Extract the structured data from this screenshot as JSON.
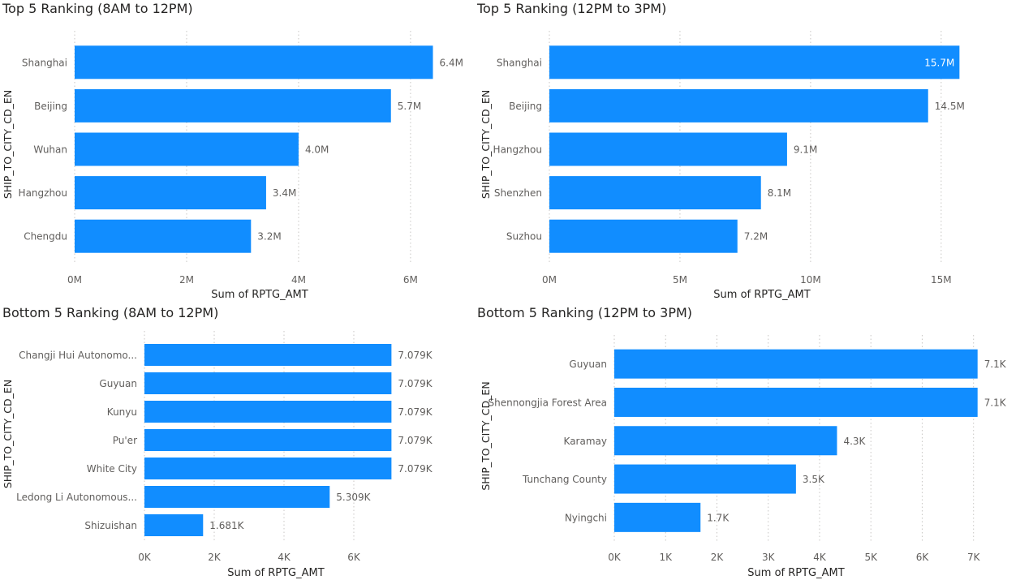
{
  "chart_data": [
    {
      "type": "bar",
      "title": "Top 5 Ranking (8AM to 12PM)",
      "xlabel": "Sum of RPTG_AMT",
      "ylabel": "SHIP_TO_CITY_CD_EN",
      "categories": [
        "Shanghai",
        "Beijing",
        "Wuhan",
        "Hangzhou",
        "Chengdu"
      ],
      "values": [
        6400000,
        5650000,
        4000000,
        3420000,
        3150000
      ],
      "data_labels": [
        "6.4M",
        "5.7M",
        "4.0M",
        "3.4M",
        "3.2M"
      ],
      "xticks": [
        0,
        2000000,
        4000000,
        6000000
      ],
      "xtick_labels": [
        "0M",
        "2M",
        "4M",
        "6M"
      ],
      "xlim": [
        0,
        6900000
      ],
      "color": "#118DFF",
      "grid": "vertical dotted"
    },
    {
      "type": "bar",
      "title": "Top 5 Ranking (12PM to 3PM)",
      "xlabel": "Sum of RPTG_AMT",
      "ylabel": "SHIP_TO_CITY_CD_EN",
      "categories": [
        "Shanghai",
        "Beijing",
        "Hangzhou",
        "Shenzhen",
        "Suzhou"
      ],
      "values": [
        15700000,
        14500000,
        9100000,
        8100000,
        7200000
      ],
      "data_labels": [
        "15.7M",
        "14.5M",
        "9.1M",
        "8.1M",
        "7.2M"
      ],
      "xticks": [
        0,
        5000000,
        10000000,
        15000000
      ],
      "xtick_labels": [
        "0M",
        "5M",
        "10M",
        "15M"
      ],
      "xlim": [
        0,
        16900000
      ],
      "color": "#118DFF",
      "grid": "vertical dotted"
    },
    {
      "type": "bar",
      "title": "Bottom 5 Ranking (8AM to 12PM)",
      "xlabel": "Sum of RPTG_AMT",
      "ylabel": "SHIP_TO_CITY_CD_EN",
      "categories": [
        "Changji Hui Autonomo...",
        "Guyuan",
        "Kunyu",
        "Pu'er",
        "White City",
        "Ledong Li Autonomous...",
        "Shizuishan"
      ],
      "values": [
        7079,
        7079,
        7079,
        7079,
        7079,
        5309,
        1681
      ],
      "data_labels": [
        "7.079K",
        "7.079K",
        "7.079K",
        "7.079K",
        "7.079K",
        "5.309K",
        "1.681K"
      ],
      "xticks": [
        0,
        2000,
        4000,
        6000
      ],
      "xtick_labels": [
        "0K",
        "2K",
        "4K",
        "6K"
      ],
      "xlim": [
        0,
        8000
      ],
      "color": "#118DFF",
      "grid": "vertical dotted"
    },
    {
      "type": "bar",
      "title": "Bottom 5 Ranking (12PM to 3PM)",
      "xlabel": "Sum of RPTG_AMT",
      "ylabel": "SHIP_TO_CITY_CD_EN",
      "categories": [
        "Guyuan",
        "Shennongjia Forest Area",
        "Karamay",
        "Tunchang County",
        "Nyingchi"
      ],
      "values": [
        7079,
        7079,
        4340,
        3540,
        1680
      ],
      "data_labels": [
        "7.1K",
        "7.1K",
        "4.3K",
        "3.5K",
        "1.7K"
      ],
      "xticks": [
        0,
        1000,
        2000,
        3000,
        4000,
        5000,
        6000,
        7000
      ],
      "xtick_labels": [
        "0K",
        "1K",
        "2K",
        "3K",
        "4K",
        "5K",
        "6K",
        "7K"
      ],
      "xlim": [
        0,
        7400
      ],
      "color": "#118DFF",
      "grid": "vertical dotted"
    }
  ]
}
